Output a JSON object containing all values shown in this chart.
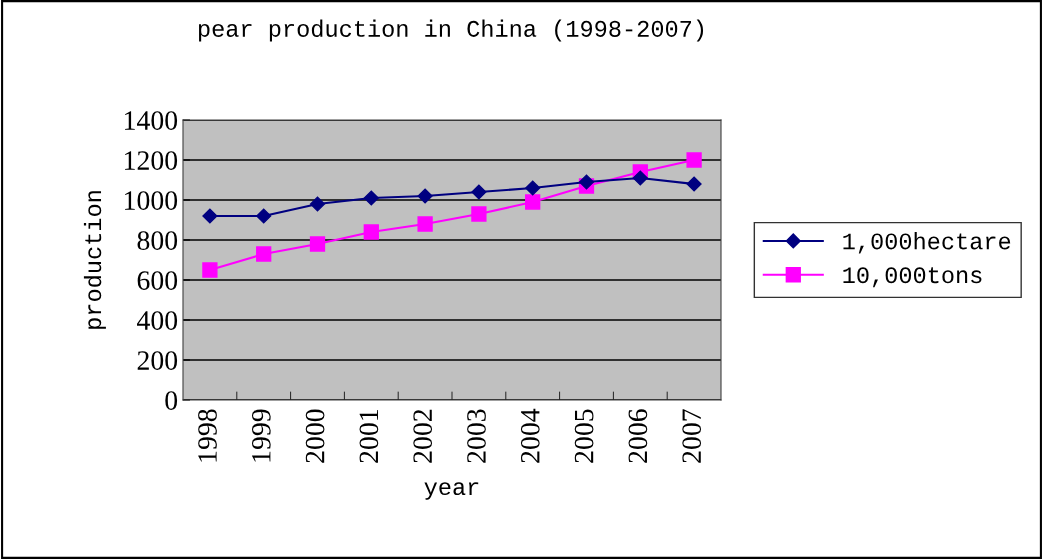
{
  "chart_data": {
    "type": "line",
    "title": "pear production in China (1998-2007)",
    "xlabel": "year",
    "ylabel": "production",
    "categories": [
      "1998",
      "1999",
      "2000",
      "2001",
      "2002",
      "2003",
      "2004",
      "2005",
      "2006",
      "2007"
    ],
    "series": [
      {
        "name": "1,000hectare",
        "color": "#000080",
        "marker": "diamond",
        "values": [
          920,
          920,
          980,
          1010,
          1020,
          1040,
          1060,
          1090,
          1110,
          1080
        ]
      },
      {
        "name": "10,000tons",
        "color": "#ff00ff",
        "marker": "square",
        "values": [
          650,
          730,
          780,
          840,
          880,
          930,
          990,
          1070,
          1140,
          1200
        ]
      }
    ],
    "ylim": [
      0,
      1400
    ],
    "yticks": [
      0,
      200,
      400,
      600,
      800,
      1000,
      1200,
      1400
    ],
    "grid": "y",
    "legend": "right"
  }
}
